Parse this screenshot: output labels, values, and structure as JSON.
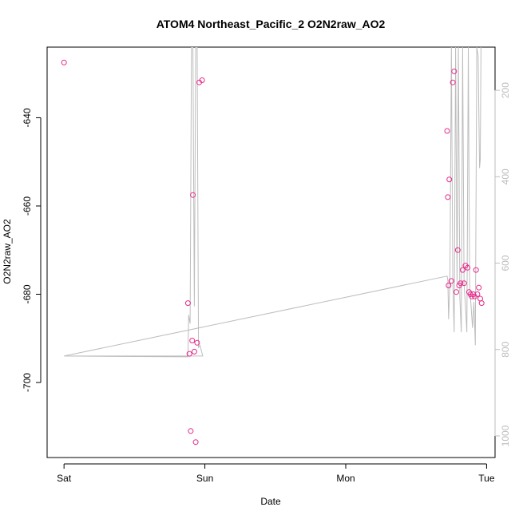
{
  "chart_data": {
    "type": "scatter",
    "title": "ATOM4 Northeast_Pacific_2 O2N2raw_AO2",
    "xlabel": "Date",
    "ylabel": "O2N2raw_AO2",
    "x_ticks": [
      {
        "label": "Sat",
        "value": 0
      },
      {
        "label": "Sun",
        "value": 1
      },
      {
        "label": "Mon",
        "value": 2
      },
      {
        "label": "Tue",
        "value": 3
      }
    ],
    "y_ticks": [
      -640,
      -660,
      -680,
      -700
    ],
    "y2_ticks": [
      200,
      400,
      600,
      800,
      1000
    ],
    "xlim": [
      -0.12,
      3.06
    ],
    "ylim": [
      -717,
      -624
    ],
    "y2lim": [
      1050,
      100
    ],
    "colors": {
      "points": "#e7298a",
      "line": "#bdbdbd",
      "axis": "#000000",
      "right_axis": "#bdbdbd"
    },
    "series": [
      {
        "type": "scatter",
        "points": [
          [
            0.0,
            -627.5
          ],
          [
            0.88,
            -682.0
          ],
          [
            0.89,
            -693.5
          ],
          [
            0.9,
            -711.0
          ],
          [
            0.91,
            -690.5
          ],
          [
            0.915,
            -657.5
          ],
          [
            0.925,
            -693.0
          ],
          [
            0.935,
            -713.5
          ],
          [
            0.945,
            -691.0
          ],
          [
            0.96,
            -632.0
          ],
          [
            0.98,
            -631.5
          ],
          [
            2.72,
            -643.0
          ],
          [
            2.725,
            -658.0
          ],
          [
            2.73,
            -678.0
          ],
          [
            2.735,
            -654.0
          ],
          [
            2.75,
            -677.0
          ],
          [
            2.76,
            -632.0
          ],
          [
            2.77,
            -629.5
          ],
          [
            2.785,
            -679.5
          ],
          [
            2.795,
            -670.0
          ],
          [
            2.805,
            -678.0
          ],
          [
            2.815,
            -677.5
          ],
          [
            2.83,
            -674.5
          ],
          [
            2.84,
            -677.5
          ],
          [
            2.85,
            -673.5
          ],
          [
            2.865,
            -674.0
          ],
          [
            2.875,
            -679.5
          ],
          [
            2.885,
            -680.0
          ],
          [
            2.895,
            -680.5
          ],
          [
            2.905,
            -680.0
          ],
          [
            2.915,
            -680.5
          ],
          [
            2.925,
            -674.5
          ],
          [
            2.935,
            -680.0
          ],
          [
            2.945,
            -678.5
          ],
          [
            2.955,
            -681.0
          ],
          [
            2.965,
            -682.0
          ]
        ]
      },
      {
        "type": "line",
        "axis": "right",
        "points": [
          [
            0.0,
            815
          ],
          [
            0.88,
            817
          ],
          [
            0.885,
            720
          ],
          [
            0.895,
            740
          ],
          [
            0.905,
            100
          ],
          [
            0.915,
            100
          ],
          [
            0.925,
            700
          ],
          [
            0.935,
            100
          ],
          [
            0.945,
            100
          ],
          [
            0.955,
            795
          ],
          [
            0.965,
            790
          ],
          [
            0.985,
            815
          ],
          [
            0.0,
            815
          ],
          [
            2.72,
            630
          ],
          [
            2.725,
            640
          ],
          [
            2.73,
            730
          ],
          [
            2.74,
            640
          ],
          [
            2.75,
            100
          ],
          [
            2.76,
            640
          ],
          [
            2.77,
            760
          ],
          [
            2.78,
            100
          ],
          [
            2.79,
            650
          ],
          [
            2.8,
            100
          ],
          [
            2.81,
            680
          ],
          [
            2.82,
            760
          ],
          [
            2.83,
            100
          ],
          [
            2.84,
            650
          ],
          [
            2.85,
            700
          ],
          [
            2.86,
            760
          ],
          [
            2.87,
            100
          ],
          [
            2.88,
            650
          ],
          [
            2.89,
            700
          ],
          [
            2.9,
            750
          ],
          [
            2.91,
            690
          ],
          [
            2.92,
            790
          ],
          [
            2.93,
            100
          ],
          [
            2.94,
            120
          ],
          [
            2.95,
            380
          ],
          [
            2.955,
            360
          ],
          [
            2.96,
            100
          ]
        ]
      }
    ]
  }
}
